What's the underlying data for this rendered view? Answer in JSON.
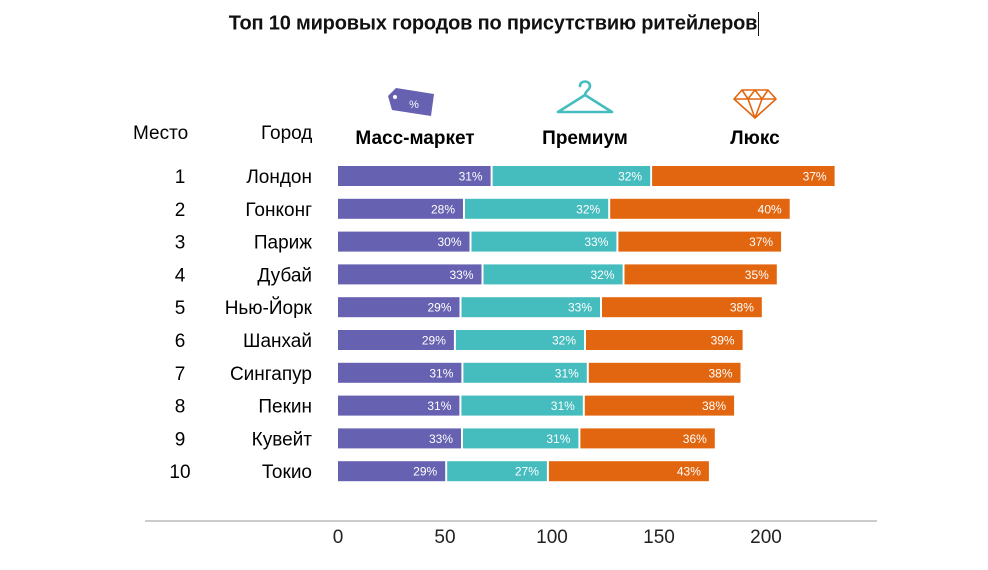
{
  "title": "Топ 10 мировых городов по присутствию ритейлеров",
  "headers": {
    "rank": "Место",
    "city": "Город",
    "mass": "Масс-маркет",
    "premium": "Премиум",
    "luxury": "Люкс"
  },
  "icons": {
    "mass": "price-tag-icon",
    "premium": "hanger-icon",
    "luxury": "diamond-icon",
    "mass_tag_text": "%"
  },
  "colors": {
    "mass": "#6661b0",
    "premium": "#45bcbe",
    "luxury": "#e2660f"
  },
  "chart_data": {
    "type": "bar",
    "orientation": "horizontal",
    "stacked": true,
    "categories": [
      "Лондон",
      "Гонконг",
      "Париж",
      "Дубай",
      "Нью-Йорк",
      "Шанхай",
      "Сингапур",
      "Пекин",
      "Кувейт",
      "Токио"
    ],
    "ranks": [
      "1",
      "2",
      "3",
      "4",
      "5",
      "6",
      "7",
      "8",
      "9",
      "10"
    ],
    "totals": [
      233,
      212,
      208,
      206,
      199,
      190,
      189,
      186,
      177,
      176
    ],
    "series": [
      {
        "name": "Масс-маркет",
        "labels": [
          "31%",
          "28%",
          "30%",
          "33%",
          "29%",
          "29%",
          "31%",
          "31%",
          "33%",
          "29%"
        ]
      },
      {
        "name": "Премиум",
        "labels": [
          "32%",
          "32%",
          "33%",
          "32%",
          "33%",
          "32%",
          "31%",
          "31%",
          "31%",
          "27%"
        ]
      },
      {
        "name": "Люкс",
        "labels": [
          "37%",
          "40%",
          "37%",
          "35%",
          "38%",
          "39%",
          "38%",
          "38%",
          "36%",
          "43%"
        ]
      }
    ],
    "xticks": [
      "0",
      "50",
      "100",
      "150",
      "200"
    ],
    "xlim": [
      0,
      250
    ],
    "grid": false,
    "legend": "top"
  }
}
